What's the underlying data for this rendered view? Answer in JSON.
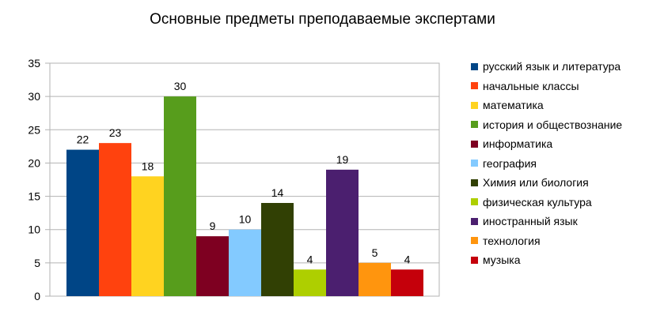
{
  "chart_data": {
    "type": "bar",
    "title": "Основные предметы преподаваемые экспертами",
    "xlabel": "",
    "ylabel": "",
    "ylim": [
      0,
      35
    ],
    "yticks": [
      0,
      5,
      10,
      15,
      20,
      25,
      30,
      35
    ],
    "grid": true,
    "legend_position": "right",
    "series": [
      {
        "name": "русский язык и литература",
        "value": 22,
        "color": "#004586"
      },
      {
        "name": "начальные классы",
        "value": 23,
        "color": "#ff420e"
      },
      {
        "name": "математика",
        "value": 18,
        "color": "#ffd320"
      },
      {
        "name": "история и обществознание",
        "value": 30,
        "color": "#579d1c"
      },
      {
        "name": "информатика",
        "value": 9,
        "color": "#7e0021"
      },
      {
        "name": "география",
        "value": 10,
        "color": "#83caff"
      },
      {
        "name": "Химия или биология",
        "value": 14,
        "color": "#314004"
      },
      {
        "name": "физическая культура",
        "value": 4,
        "color": "#aecf00"
      },
      {
        "name": "иностранный язык",
        "value": 19,
        "color": "#4b1f6f"
      },
      {
        "name": "технология",
        "value": 5,
        "color": "#ff950e"
      },
      {
        "name": "музыка",
        "value": 4,
        "color": "#c5000b"
      }
    ]
  }
}
